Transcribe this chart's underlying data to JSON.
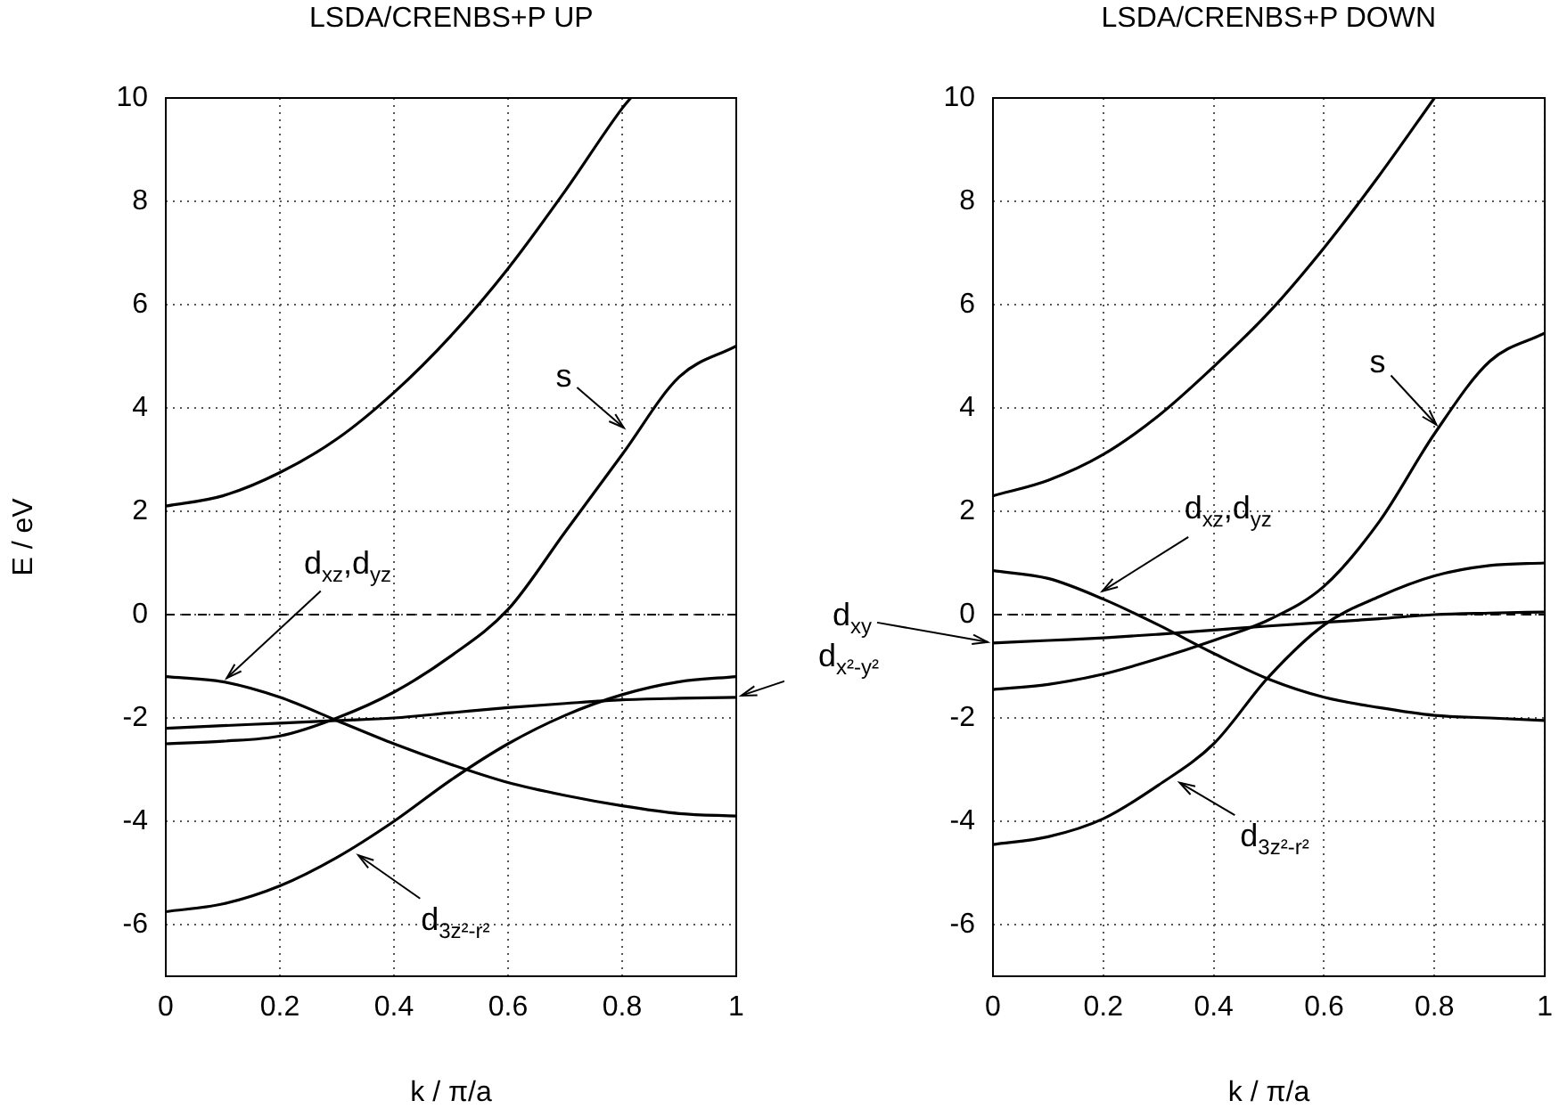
{
  "chart_data": [
    {
      "type": "line",
      "title": "LSDA/CRENBS+P UP",
      "xlabel": "k / π/a",
      "ylabel": "E / eV",
      "x": [
        0,
        0.1,
        0.2,
        0.3,
        0.4,
        0.5,
        0.6,
        0.7,
        0.8,
        0.9,
        1
      ],
      "series": [
        {
          "color": "#000000",
          "x": [
            0,
            0.1,
            0.2,
            0.3,
            0.4,
            0.5,
            0.6,
            0.7,
            0.8,
            0.815
          ],
          "values": [
            2.1,
            2.3,
            2.75,
            3.4,
            4.3,
            5.4,
            6.7,
            8.2,
            9.8,
            10
          ]
        },
        {
          "color": "#000000",
          "values": [
            -2.5,
            -2.45,
            -2.35,
            -2.0,
            -1.5,
            -0.8,
            0.1,
            1.6,
            3.1,
            4.6,
            5.2
          ]
        },
        {
          "color": "#000000",
          "values": [
            -1.2,
            -1.3,
            -1.6,
            -2.05,
            -2.5,
            -2.9,
            -3.25,
            -3.5,
            -3.7,
            -3.85,
            -3.9
          ]
        },
        {
          "color": "#000000",
          "values": [
            -2.2,
            -2.15,
            -2.1,
            -2.05,
            -2.0,
            -1.9,
            -1.8,
            -1.72,
            -1.65,
            -1.62,
            -1.6
          ]
        },
        {
          "color": "#000000",
          "values": [
            -5.75,
            -5.6,
            -5.25,
            -4.7,
            -4.0,
            -3.2,
            -2.5,
            -1.95,
            -1.55,
            -1.3,
            -1.2
          ]
        }
      ],
      "xlim": [
        0,
        1
      ],
      "ylim": [
        -7,
        10
      ],
      "xticks": [
        0,
        0.2,
        0.4,
        0.6,
        0.8,
        1
      ],
      "yticks": [
        -6,
        -4,
        -2,
        0,
        2,
        4,
        6,
        8,
        10
      ],
      "grid": true,
      "ref_lines": [
        {
          "axis": "y",
          "value": 0,
          "line_style": "dashed",
          "color": "#000000"
        }
      ],
      "annotations": [
        {
          "text": "s",
          "x": 0.81,
          "y": 3.55
        },
        {
          "text": "d$_{xz}$,d$_{yz}$",
          "x": 0.1,
          "y": -1.3
        },
        {
          "text": "d$_{3z²-r²}$",
          "x": 0.33,
          "y": -4.6
        },
        {
          "text": "d$_{x²-y²}$",
          "x": 1,
          "y": -1.6
        }
      ]
    },
    {
      "type": "line",
      "title": "LSDA/CRENBS+P DOWN",
      "xlabel": "k / π/a",
      "x": [
        0,
        0.1,
        0.2,
        0.3,
        0.4,
        0.5,
        0.6,
        0.7,
        0.8,
        0.9,
        1
      ],
      "series": [
        {
          "color": "#000000",
          "x": [
            0,
            0.1,
            0.2,
            0.3,
            0.4,
            0.5,
            0.6,
            0.7,
            0.8
          ],
          "values": [
            2.3,
            2.6,
            3.1,
            3.85,
            4.8,
            5.85,
            7.1,
            8.5,
            10
          ]
        },
        {
          "color": "#000000",
          "values": [
            -1.45,
            -1.35,
            -1.15,
            -0.85,
            -0.5,
            -0.1,
            0.55,
            1.8,
            3.5,
            4.9,
            5.45
          ]
        },
        {
          "color": "#000000",
          "values": [
            0.85,
            0.7,
            0.3,
            -0.2,
            -0.75,
            -1.25,
            -1.6,
            -1.8,
            -1.95,
            -2.0,
            -2.05
          ]
        },
        {
          "color": "#000000",
          "values": [
            -0.55,
            -0.5,
            -0.45,
            -0.38,
            -0.3,
            -0.22,
            -0.15,
            -0.08,
            0.0,
            0.03,
            0.05
          ]
        },
        {
          "color": "#000000",
          "values": [
            -4.45,
            -4.3,
            -3.95,
            -3.3,
            -2.5,
            -1.2,
            -0.2,
            0.35,
            0.75,
            0.95,
            1.0
          ]
        }
      ],
      "xlim": [
        0,
        1
      ],
      "ylim": [
        -7,
        10
      ],
      "xticks": [
        0,
        0.2,
        0.4,
        0.6,
        0.8,
        1
      ],
      "yticks": [
        -6,
        -4,
        -2,
        0,
        2,
        4,
        6,
        8,
        10
      ],
      "grid": true,
      "ref_lines": [
        {
          "axis": "y",
          "value": 0,
          "line_style": "dashed",
          "color": "#000000"
        }
      ],
      "annotations": [
        {
          "text": "s",
          "x": 0.81,
          "y": 3.6
        },
        {
          "text": "d$_{xz}$,d$_{yz}$",
          "x": 0.19,
          "y": 0.4
        },
        {
          "text": "d$_{3z²-r²}$",
          "x": 0.33,
          "y": -3.2
        },
        {
          "text": "d$_{xy}$",
          "x": 0,
          "y": -0.55
        }
      ]
    }
  ]
}
